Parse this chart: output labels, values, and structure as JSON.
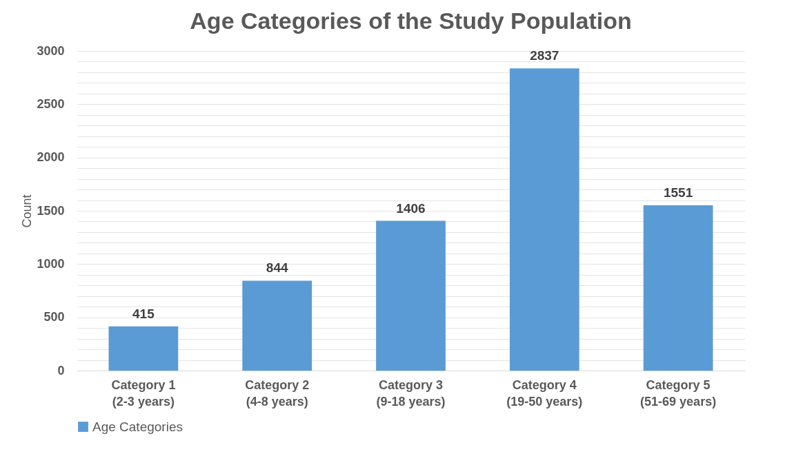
{
  "chart_data": {
    "type": "bar",
    "title": "Age Categories of the Study Population",
    "ylabel": "Count",
    "categories": [
      "Category 1\n(2-3 years)",
      "Category 2\n(4-8 years)",
      "Category 3\n(9-18 years)",
      "Category 4\n(19-50 years)",
      "Category 5\n(51-69 years)"
    ],
    "series": [
      {
        "name": "Age Categories",
        "color": "#5b9bd5",
        "values": [
          415,
          844,
          1406,
          2837,
          1551
        ]
      }
    ],
    "ylim": [
      0,
      3000
    ],
    "yticks": [
      0,
      {
        "value": 100,
        "label": null
      },
      {
        "value": 200,
        "label": null
      },
      {
        "value": 300,
        "label": null
      },
      {
        "value": 400,
        "label": null
      },
      500,
      {
        "value": 600,
        "label": null
      },
      {
        "value": 700,
        "label": null
      },
      {
        "value": 800,
        "label": null
      },
      {
        "value": 900,
        "label": null
      },
      1000,
      {
        "value": 1100,
        "label": null
      },
      {
        "value": 1200,
        "label": null
      },
      {
        "value": 1300,
        "label": null
      },
      {
        "value": 1400,
        "label": null
      },
      1500,
      {
        "value": 1600,
        "label": null
      },
      {
        "value": 1700,
        "label": null
      },
      {
        "value": 1800,
        "label": null
      },
      {
        "value": 1900,
        "label": null
      },
      2000,
      {
        "value": 2100,
        "label": null
      },
      {
        "value": 2200,
        "label": null
      },
      {
        "value": 2300,
        "label": null
      },
      {
        "value": 2400,
        "label": null
      },
      2500,
      {
        "value": 2600,
        "label": null
      },
      {
        "value": 2700,
        "label": null
      },
      {
        "value": 2800,
        "label": null
      },
      {
        "value": 2900,
        "label": null
      },
      3000
    ],
    "grid": "y",
    "legend": "bottom",
    "data_labels": true
  }
}
